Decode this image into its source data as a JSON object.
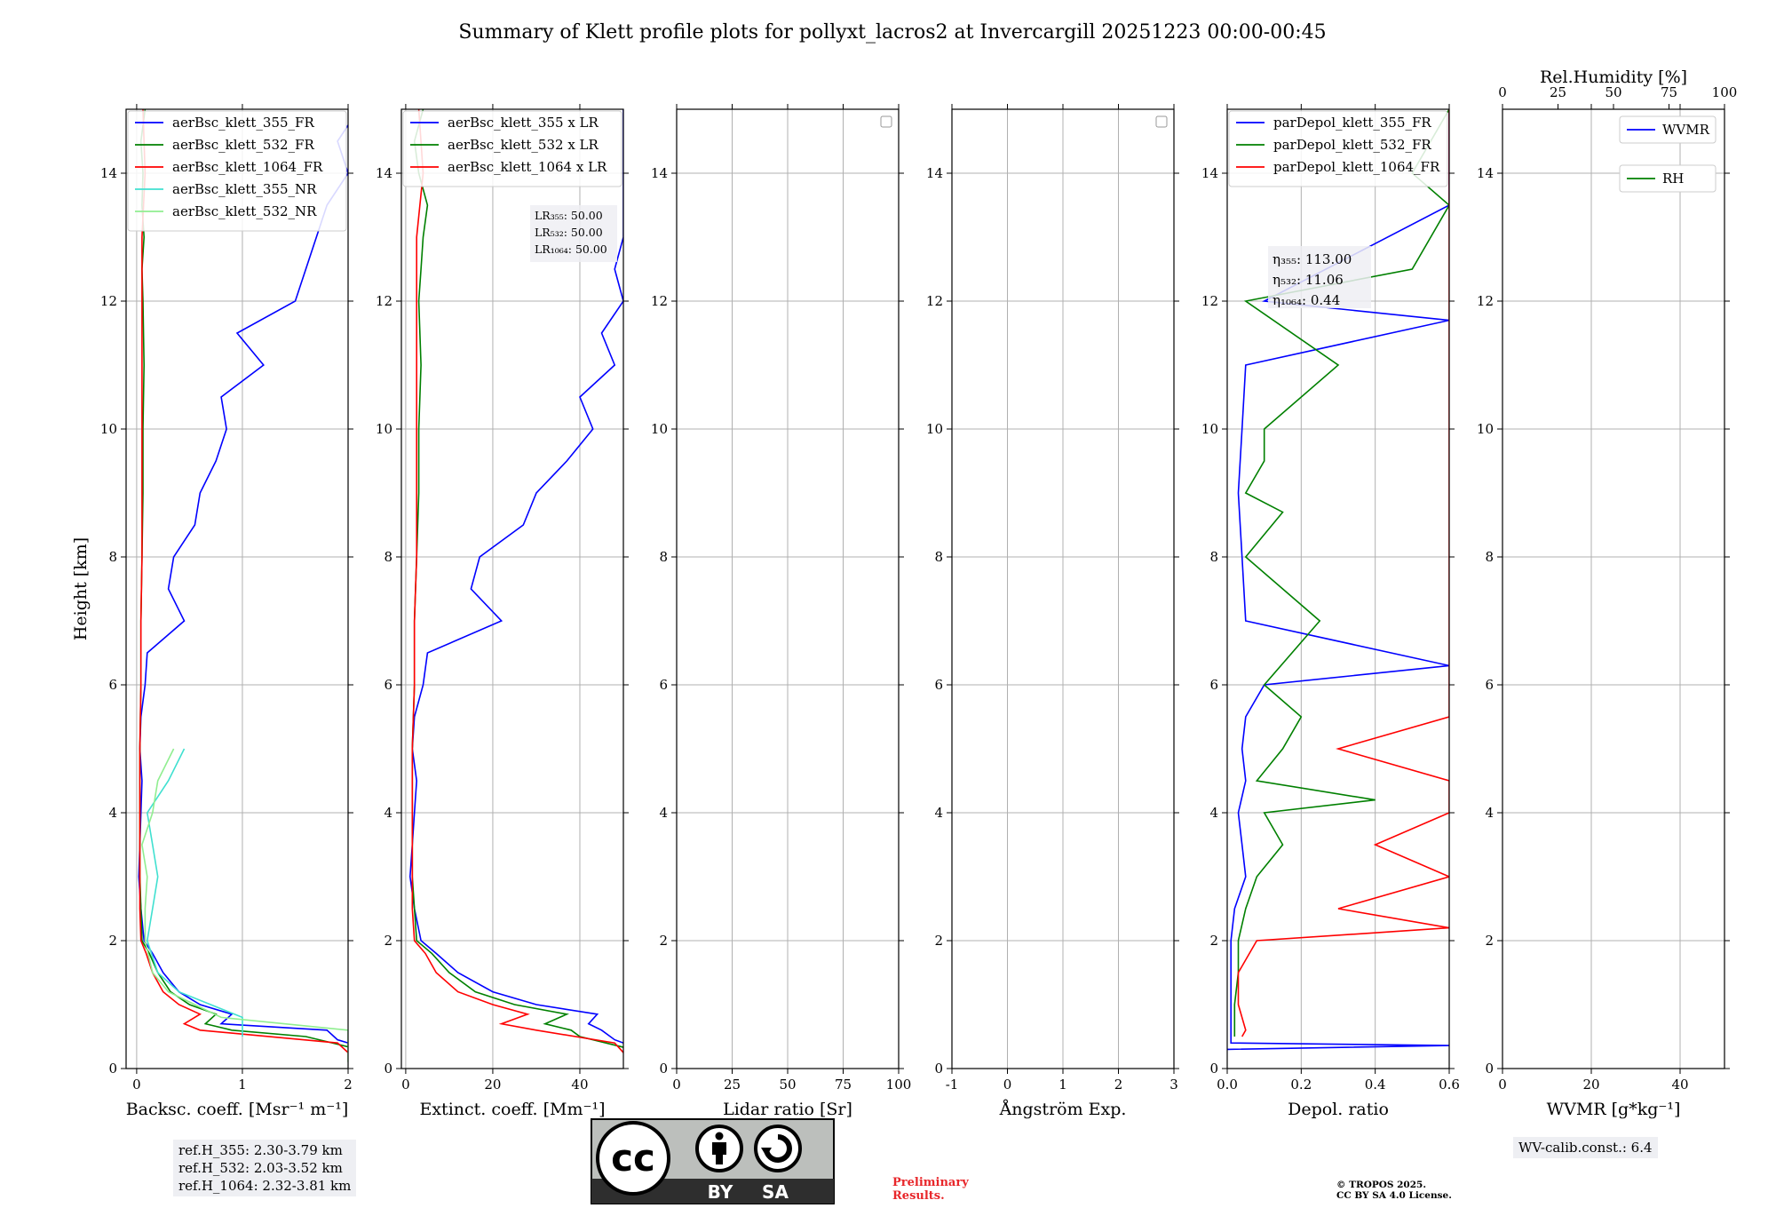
{
  "title": "Summary of Klett profile plots for pollyxt_lacros2 at Invercargill 20251223 00:00-00:45",
  "chart_data": [
    {
      "type": "line",
      "id": "backscatter",
      "xlabel": "Backsc. coeff. [Msr⁻¹ m⁻¹]",
      "ylabel": "Height [km]",
      "xlim": [
        -0.1,
        2
      ],
      "ylim": [
        0,
        15
      ],
      "xticks": [
        0,
        1,
        2
      ],
      "yticks": [
        0,
        2,
        4,
        6,
        8,
        10,
        12,
        14
      ],
      "grid": true,
      "legend_position": "top-right",
      "series": [
        {
          "name": "aerBsc_klett_355_FR",
          "color": "#0000ff",
          "y": [
            0.35,
            0.45,
            0.6,
            0.7,
            0.85,
            1.0,
            1.2,
            1.5,
            1.8,
            2.0,
            2.5,
            3.0,
            3.5,
            4.0,
            4.5,
            5.0,
            5.5,
            6.0,
            6.5,
            7.0,
            7.5,
            8.0,
            8.5,
            9.0,
            9.5,
            10.0,
            10.5,
            11.0,
            11.5,
            12.0,
            12.5,
            13.0,
            13.5,
            14.0,
            14.5,
            15.0
          ],
          "x": [
            2.1,
            1.9,
            1.8,
            0.8,
            0.9,
            0.6,
            0.4,
            0.25,
            0.15,
            0.07,
            0.04,
            0.02,
            0.03,
            0.04,
            0.05,
            0.03,
            0.04,
            0.08,
            0.1,
            0.45,
            0.3,
            0.35,
            0.55,
            0.6,
            0.75,
            0.85,
            0.8,
            1.2,
            0.95,
            1.5,
            1.6,
            1.7,
            1.8,
            2.0,
            1.9,
            2.1
          ]
        },
        {
          "name": "aerBsc_klett_532_FR",
          "color": "#008000",
          "y": [
            0.3,
            0.5,
            0.6,
            0.7,
            0.85,
            1.0,
            1.2,
            1.5,
            1.8,
            2.0,
            2.5,
            3.0,
            4.0,
            5.0,
            6.0,
            7.0,
            8.0,
            9.0,
            10.0,
            11.0,
            12.0,
            12.5,
            13.0,
            13.5,
            14.0,
            14.5,
            15.0
          ],
          "x": [
            2.1,
            1.6,
            0.9,
            0.65,
            0.75,
            0.5,
            0.32,
            0.2,
            0.12,
            0.05,
            0.04,
            0.03,
            0.03,
            0.03,
            0.04,
            0.04,
            0.05,
            0.06,
            0.06,
            0.07,
            0.06,
            0.05,
            0.07,
            0.05,
            0.06,
            0.04,
            0.08
          ]
        },
        {
          "name": "aerBsc_klett_1064_FR",
          "color": "#ff0000",
          "y": [
            0.1,
            0.4,
            0.6,
            0.7,
            0.85,
            1.0,
            1.2,
            1.5,
            1.8,
            2.0,
            2.5,
            3.0,
            4.0,
            5.0,
            6.0,
            7.0,
            8.0,
            9.0,
            10.0,
            11.0,
            12.0,
            13.0,
            14.0,
            15.0
          ],
          "x": [
            2.1,
            1.9,
            0.6,
            0.45,
            0.6,
            0.4,
            0.25,
            0.15,
            0.09,
            0.04,
            0.03,
            0.03,
            0.03,
            0.03,
            0.04,
            0.04,
            0.05,
            0.05,
            0.05,
            0.05,
            0.05,
            0.05,
            0.08,
            0.06
          ]
        },
        {
          "name": "aerBsc_klett_355_NR",
          "color": "#40e0d0",
          "y": [
            0.5,
            0.8,
            1.0,
            1.2,
            1.5,
            2.0,
            2.5,
            3.0,
            3.5,
            4.0,
            4.5,
            5.0
          ],
          "x": [
            1.0,
            1.0,
            0.7,
            0.4,
            0.2,
            0.1,
            0.15,
            0.2,
            0.15,
            0.1,
            0.3,
            0.45
          ]
        },
        {
          "name": "aerBsc_klett_532_NR",
          "color": "#90ee90",
          "y": [
            0.1,
            0.6,
            0.8,
            1.0,
            1.2,
            1.5,
            2.0,
            2.5,
            3.0,
            3.5,
            4.0,
            4.5,
            5.0
          ],
          "x": [
            2.0,
            2.0,
            0.8,
            0.55,
            0.3,
            0.15,
            0.08,
            0.08,
            0.1,
            0.05,
            0.15,
            0.2,
            0.35
          ]
        }
      ]
    },
    {
      "type": "line",
      "id": "extinction",
      "xlabel": "Extinct. coeff. [Mm⁻¹]",
      "xlim": [
        -1,
        50
      ],
      "ylim": [
        0,
        15
      ],
      "xticks": [
        0,
        20,
        40
      ],
      "yticks": [
        0,
        2,
        4,
        6,
        8,
        10,
        12,
        14
      ],
      "grid": true,
      "legend_position": "top-right",
      "series": [
        {
          "name": "aerBsc_klett_355 x LR",
          "color": "#0000ff",
          "y": [
            0.35,
            0.45,
            0.6,
            0.7,
            0.85,
            1.0,
            1.2,
            1.5,
            1.8,
            2.0,
            2.5,
            3.0,
            3.5,
            4.0,
            4.5,
            5.0,
            5.5,
            6.0,
            6.5,
            7.0,
            7.5,
            8.0,
            8.5,
            9.0,
            9.5,
            10.0,
            10.5,
            11.0,
            11.5,
            12.0,
            12.5,
            13.0,
            13.5,
            14.0,
            14.5,
            15.0
          ],
          "x": [
            52,
            48,
            45,
            42,
            44,
            30,
            20,
            12,
            7,
            3.5,
            2,
            1,
            1.5,
            2,
            2.5,
            1.5,
            2,
            4,
            5,
            22,
            15,
            17,
            27,
            30,
            37,
            43,
            40,
            48,
            45,
            50,
            48,
            50,
            50,
            50,
            50,
            50
          ]
        },
        {
          "name": "aerBsc_klett_532 x LR",
          "color": "#008000",
          "y": [
            0.3,
            0.5,
            0.6,
            0.7,
            0.85,
            1.0,
            1.2,
            1.5,
            1.8,
            2.0,
            2.5,
            3.0,
            4.0,
            5.0,
            6.0,
            7.0,
            8.0,
            9.0,
            10.0,
            11.0,
            12.0,
            12.5,
            13.0,
            13.5,
            14.0,
            14.5,
            15.0
          ],
          "x": [
            52,
            40,
            38,
            32,
            37,
            25,
            16,
            10,
            6,
            2.5,
            2,
            1.5,
            1.5,
            1.5,
            2,
            2,
            2.5,
            3,
            3,
            3.5,
            3,
            3.5,
            4,
            5,
            3,
            2,
            4
          ]
        },
        {
          "name": "aerBsc_klett_1064 x LR",
          "color": "#ff0000",
          "y": [
            0.1,
            0.4,
            0.6,
            0.7,
            0.85,
            1.0,
            1.2,
            1.5,
            1.8,
            2.0,
            2.5,
            3.0,
            4.0,
            5.0,
            6.0,
            7.0,
            8.0,
            9.0,
            10.0,
            11.0,
            12.0,
            13.0,
            14.0,
            15.0
          ],
          "x": [
            52,
            48,
            30,
            22,
            28,
            20,
            12,
            7,
            4.5,
            2,
            1.5,
            1.5,
            1.5,
            1.5,
            2,
            2,
            2.5,
            2.5,
            2.5,
            2.5,
            2.5,
            2.5,
            4,
            3
          ]
        }
      ],
      "annotation": [
        "LR₃₅₅: 50.00",
        "LR₅₃₂: 50.00",
        "LR₁₀₆₄: 50.00"
      ]
    },
    {
      "type": "line",
      "id": "lidar_ratio",
      "xlabel": "Lidar ratio [Sr]",
      "xlim": [
        0,
        100
      ],
      "ylim": [
        0,
        15
      ],
      "xticks": [
        0,
        25,
        50,
        75,
        100
      ],
      "yticks": [
        0,
        2,
        4,
        6,
        8,
        10,
        12,
        14
      ],
      "grid": true,
      "legend_position": "top-right",
      "series": []
    },
    {
      "type": "line",
      "id": "angstrom",
      "xlabel": "Ångström Exp.",
      "xlim": [
        -1,
        3
      ],
      "ylim": [
        0,
        15
      ],
      "xticks": [
        -1,
        0,
        1,
        2,
        3
      ],
      "yticks": [
        0,
        2,
        4,
        6,
        8,
        10,
        12,
        14
      ],
      "grid": true,
      "legend_position": "top-right",
      "series": []
    },
    {
      "type": "line",
      "id": "depol",
      "xlabel": "Depol. ratio",
      "xlim": [
        0,
        0.6
      ],
      "ylim": [
        0,
        15
      ],
      "xticks": [
        0.0,
        0.2,
        0.4,
        0.6
      ],
      "xtick_labels": [
        "0.0",
        "0.2",
        "0.4",
        "0.6"
      ],
      "yticks": [
        0,
        2,
        4,
        6,
        8,
        10,
        12,
        14
      ],
      "grid": true,
      "legend_position": "top-left",
      "series": [
        {
          "name": "parDepol_klett_355_FR",
          "color": "#0000ff",
          "y": [
            0.3,
            0.36,
            0.4,
            0.6,
            1.0,
            1.5,
            2.0,
            2.5,
            3.0,
            3.5,
            4.0,
            4.5,
            5.0,
            5.5,
            6.0,
            6.3,
            7.0,
            8.0,
            9.0,
            10.0,
            11.0,
            11.7,
            12.0,
            13.5,
            14.0,
            15.0
          ],
          "x": [
            0.0,
            0.6,
            0.01,
            0.01,
            0.01,
            0.01,
            0.01,
            0.02,
            0.05,
            0.04,
            0.03,
            0.05,
            0.04,
            0.05,
            0.1,
            0.6,
            0.05,
            0.04,
            0.03,
            0.04,
            0.05,
            0.6,
            0.1,
            0.6,
            0.6,
            0.6
          ]
        },
        {
          "name": "parDepol_klett_532_FR",
          "color": "#008000",
          "y": [
            0.5,
            1.0,
            1.5,
            2.0,
            2.5,
            3.0,
            3.5,
            4.0,
            4.2,
            4.5,
            5.0,
            5.5,
            6.0,
            7.0,
            8.0,
            8.7,
            9.0,
            9.5,
            10.0,
            11.0,
            12.0,
            12.5,
            13.5,
            14.0,
            15.0
          ],
          "x": [
            0.02,
            0.02,
            0.03,
            0.03,
            0.05,
            0.08,
            0.15,
            0.1,
            0.4,
            0.08,
            0.15,
            0.2,
            0.1,
            0.25,
            0.05,
            0.15,
            0.05,
            0.1,
            0.1,
            0.3,
            0.05,
            0.5,
            0.6,
            0.5,
            0.6
          ]
        },
        {
          "name": "parDepol_klett_1064_FR",
          "color": "#ff0000",
          "y": [
            0.5,
            0.6,
            1.0,
            1.5,
            2.0,
            2.2,
            2.5,
            3.0,
            3.5,
            4.0,
            4.5,
            5.0,
            5.5,
            6.0,
            6.5,
            7.0,
            7.5,
            8.0,
            8.5,
            9.0,
            9.5,
            10.0,
            10.5,
            11.0,
            11.5,
            12.0,
            12.5,
            13.0,
            13.5,
            14.0,
            14.5,
            15.0
          ],
          "x": [
            0.04,
            0.05,
            0.03,
            0.03,
            0.08,
            0.6,
            0.3,
            0.6,
            0.4,
            0.6,
            0.6,
            0.3,
            0.6,
            0.6,
            0.6,
            0.6,
            0.6,
            0.6,
            0.6,
            0.6,
            0.6,
            0.6,
            0.6,
            0.6,
            0.6,
            0.6,
            0.6,
            0.6,
            0.6,
            0.6,
            0.6,
            0.6
          ]
        }
      ],
      "annotation": [
        "η₃₅₅: 113.00",
        "η₅₃₂: 11.06",
        "η₁₀₆₄: 0.44"
      ]
    },
    {
      "type": "line",
      "id": "wvmr",
      "xlabel": "WVMR [g*kg⁻¹]",
      "top_xlabel": "Rel.Humidity [%]",
      "xlim": [
        0,
        50
      ],
      "top_xlim": [
        0,
        100
      ],
      "ylim": [
        0,
        15
      ],
      "xticks": [
        0,
        20,
        40
      ],
      "top_xticks": [
        0,
        25,
        50,
        75,
        100
      ],
      "yticks": [
        0,
        2,
        4,
        6,
        8,
        10,
        12,
        14
      ],
      "grid": true,
      "legend_position": "top-right",
      "series": [
        {
          "name": "WVMR",
          "color": "#0000ff",
          "x": [],
          "y": []
        },
        {
          "name": "RH",
          "color": "#008000",
          "x": [],
          "y": []
        }
      ]
    }
  ],
  "info_boxes": {
    "ref_heights": [
      "ref.H_355: 2.30-3.79 km",
      "ref.H_532: 2.03-3.52 km",
      "ref.H_1064: 2.32-3.81 km"
    ],
    "wv_calib": "WV-calib.const.: 6.4"
  },
  "license_logo": {
    "cc": "cc",
    "by": "BY",
    "sa": "SA"
  },
  "preliminary": [
    "Preliminary",
    "Results."
  ],
  "copyright": [
    "© TROPOS 2025.",
    "CC BY SA 4.0 License."
  ]
}
